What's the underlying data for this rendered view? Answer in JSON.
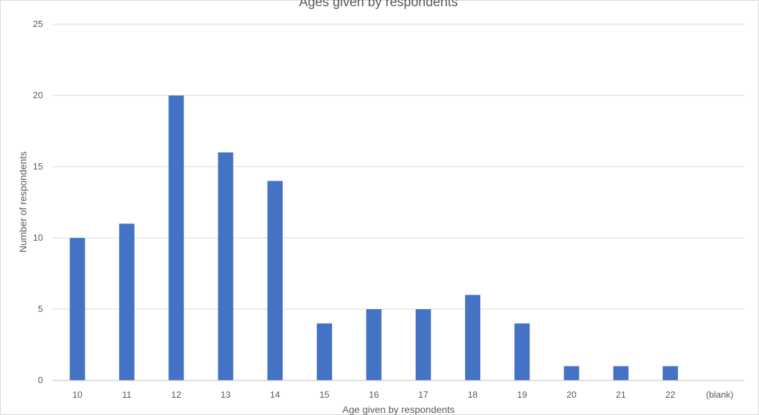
{
  "chart_data": {
    "type": "bar",
    "title": "Ages given by respondents",
    "xlabel": "Age given by respondents",
    "ylabel": "Number of respondents",
    "categories": [
      "10",
      "11",
      "12",
      "13",
      "14",
      "15",
      "16",
      "17",
      "18",
      "19",
      "20",
      "21",
      "22",
      "(blank)"
    ],
    "values": [
      10,
      11,
      20,
      16,
      14,
      4,
      5,
      5,
      6,
      4,
      1,
      1,
      1,
      0
    ],
    "ylim": [
      0,
      25
    ],
    "yticks": [
      0,
      5,
      10,
      15,
      20,
      25
    ],
    "grid": true,
    "legend": "none",
    "colors": {
      "bar": "#4472c4",
      "grid": "#d9d9d9",
      "axis": "#bfbfbf",
      "text": "#595959"
    }
  }
}
